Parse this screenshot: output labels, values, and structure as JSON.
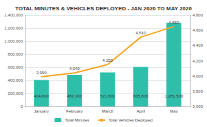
{
  "chart_data": {
    "type": "bar",
    "title": "TOTAL MINUTES & VEHICLES DEPLOYED - JAN 2020 TO MAY 2020",
    "categories": [
      "January",
      "February",
      "March",
      "April",
      "May"
    ],
    "series": [
      {
        "name": "Total Minutes",
        "type": "bar",
        "color": "#2ebfab",
        "values": [
          404600,
          483300,
          521600,
          605600,
          1281500
        ],
        "value_labels": [
          "404,600",
          "483,300",
          "521,600",
          "605,600",
          "1,281,500"
        ]
      },
      {
        "name": "Total Vehicles Deployed",
        "type": "line",
        "axis": "y2",
        "color": "#f5a623",
        "marker": "none",
        "values": [
          3990,
          4040,
          4150,
          4510,
          4650
        ],
        "value_labels": [
          "3,990",
          "4,040",
          "4,150",
          "4,510",
          "4,650"
        ]
      }
    ],
    "ylim": [
      0,
      1400000
    ],
    "yticks": [
      0,
      {
        "value": 200000,
        "label": "200,000"
      },
      {
        "value": 400000,
        "label": "400,000"
      },
      {
        "value": 600000,
        "label": "600,000"
      },
      {
        "value": 800000,
        "label": "800,000"
      },
      {
        "value": 1000000,
        "label": "1,000,000"
      },
      {
        "value": 1200000,
        "label": "1,200,000"
      },
      {
        "value": 1400000,
        "label": "1,400,000"
      }
    ],
    "y2lim": [
      3600,
      4800
    ],
    "y2ticks": [
      {
        "value": 3600,
        "label": "3,600"
      },
      {
        "value": 3800,
        "label": "3,800"
      },
      {
        "value": 4000,
        "label": "4,000"
      },
      {
        "value": 4200,
        "label": "4,200"
      },
      {
        "value": 4400,
        "label": "4,400"
      },
      {
        "value": 4600,
        "label": "4,600"
      },
      {
        "value": 4800,
        "label": "4,800"
      }
    ],
    "grid": true,
    "legend": "bottom",
    "data_labels": true
  }
}
